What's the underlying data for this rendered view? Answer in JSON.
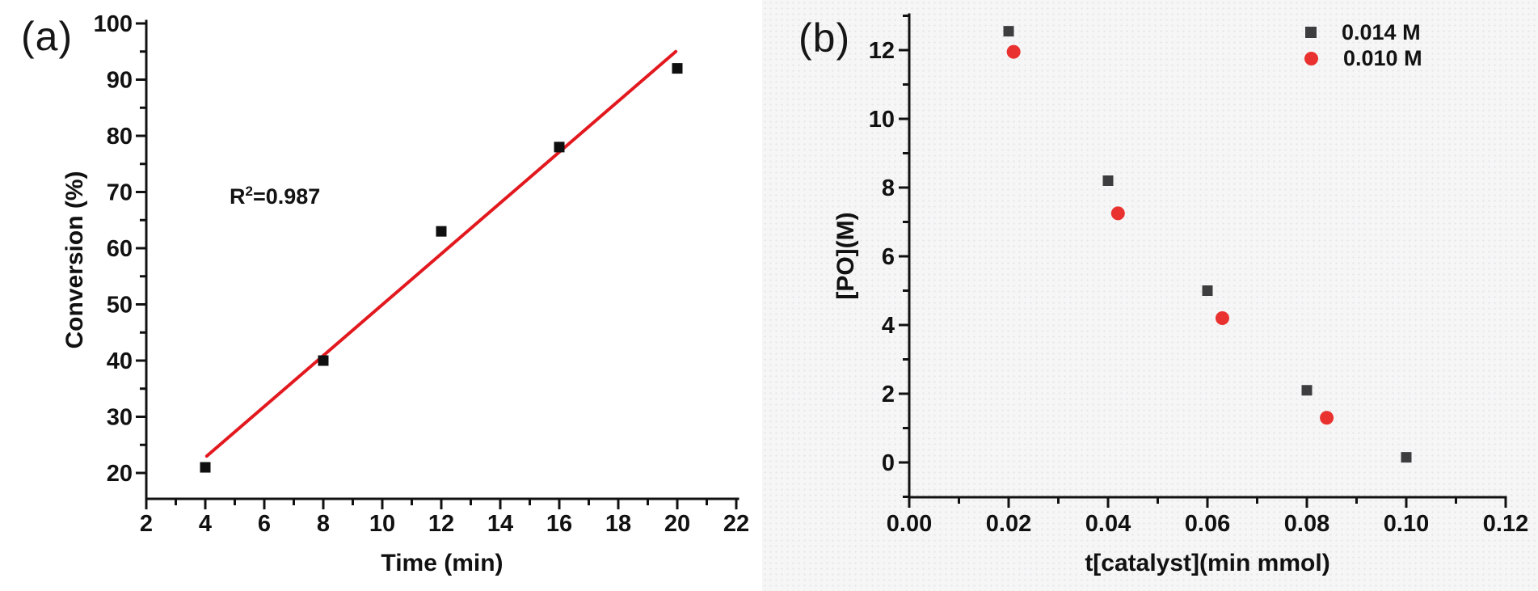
{
  "figure": {
    "description_colors": {
      "axis_and_text": "#111111",
      "panel_a_marker": "#0f0f0f",
      "fit_line_red": "#e2191f",
      "panel_b_square": "#3d3d3f",
      "panel_b_circle": "#e9322f",
      "right_panel_background": "#f6f6f7"
    }
  },
  "panels": [
    {
      "id": "a",
      "label": "(a)",
      "annotation": {
        "base": "R",
        "sup": "2",
        "rest": "=0.987"
      }
    },
    {
      "id": "b",
      "label": "(b)"
    }
  ],
  "chart_data": [
    {
      "panel": "a",
      "type": "scatter",
      "title": "",
      "xlabel": "Time (min)",
      "ylabel": "Conversion (%)",
      "xlim": [
        2,
        22
      ],
      "ylim": [
        16,
        100
      ],
      "grid": false,
      "legend_position": "none",
      "annotation": "R²=0.987",
      "x_ticks": {
        "values": [
          2,
          4,
          6,
          8,
          10,
          12,
          14,
          16,
          18,
          20,
          22
        ],
        "labels": [
          "2",
          "4",
          "6",
          "8",
          "10",
          "12",
          "14",
          "16",
          "18",
          "20",
          "22"
        ]
      },
      "y_ticks": {
        "values": [
          20,
          30,
          40,
          50,
          60,
          70,
          80,
          90,
          100
        ],
        "labels": [
          "20",
          "30",
          "40",
          "50",
          "60",
          "70",
          "80",
          "90",
          "100"
        ]
      },
      "series": [
        {
          "name": "conversion",
          "marker": "square",
          "color": "#0f0f0f",
          "points": [
            [
              4,
              21
            ],
            [
              8,
              40
            ],
            [
              12,
              63
            ],
            [
              16,
              78
            ],
            [
              20,
              92
            ]
          ]
        }
      ],
      "fit_line": {
        "color": "#e2191f",
        "r_squared": 0.987,
        "from": [
          4.05,
          23
        ],
        "to": [
          19.95,
          95
        ]
      }
    },
    {
      "panel": "b",
      "type": "scatter",
      "title": "",
      "xlabel": "t[catalyst](min mmol)",
      "ylabel": "[PO](M)",
      "xlim": [
        0,
        0.12
      ],
      "ylim": [
        -1,
        13
      ],
      "grid": false,
      "legend_position": "top-right",
      "x_ticks": {
        "values": [
          0,
          0.02,
          0.04,
          0.06,
          0.08,
          0.1,
          0.12
        ],
        "labels": [
          "0.00",
          "0.02",
          "0.04",
          "0.06",
          "0.08",
          "0.10",
          "0.12"
        ]
      },
      "y_ticks": {
        "values": [
          0,
          2,
          4,
          6,
          8,
          10,
          12
        ],
        "labels": [
          "0",
          "2",
          "4",
          "6",
          "8",
          "10",
          "12"
        ]
      },
      "series": [
        {
          "name": "0.014 M",
          "marker": "square",
          "color": "#3d3d3f",
          "points": [
            [
              0.02,
              12.55
            ],
            [
              0.04,
              8.2
            ],
            [
              0.06,
              5.0
            ],
            [
              0.08,
              2.1
            ],
            [
              0.1,
              0.15
            ]
          ]
        },
        {
          "name": "0.010 M",
          "marker": "circle",
          "color": "#e9322f",
          "points": [
            [
              0.021,
              11.95
            ],
            [
              0.042,
              7.25
            ],
            [
              0.063,
              4.2
            ],
            [
              0.084,
              1.3
            ]
          ]
        }
      ]
    }
  ]
}
